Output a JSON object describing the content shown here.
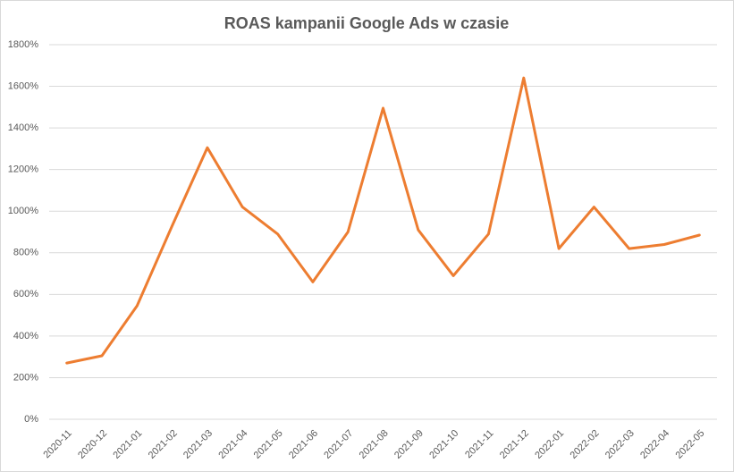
{
  "chart_data": {
    "type": "line",
    "title": "ROAS kampanii Google Ads w czasie",
    "categories": [
      "2020-11",
      "2020-12",
      "2021-01",
      "2021-02",
      "2021-03",
      "2021-04",
      "2021-05",
      "2021-06",
      "2021-07",
      "2021-08",
      "2021-09",
      "2021-10",
      "2021-11",
      "2021-12",
      "2022-01",
      "2022-02",
      "2022-03",
      "2022-04",
      "2022-05"
    ],
    "values": [
      270,
      305,
      545,
      930,
      1305,
      1020,
      890,
      660,
      900,
      1495,
      910,
      690,
      890,
      1640,
      820,
      1020,
      820,
      840,
      885
    ],
    "color": "#ed7d31",
    "ylim": [
      0,
      1800
    ],
    "yticks": [
      {
        "value": 0,
        "label": "0%"
      },
      {
        "value": 200,
        "label": "200%"
      },
      {
        "value": 400,
        "label": "400%"
      },
      {
        "value": 600,
        "label": "600%"
      },
      {
        "value": 800,
        "label": "800%"
      },
      {
        "value": 1000,
        "label": "1000%"
      },
      {
        "value": 1200,
        "label": "1200%"
      },
      {
        "value": 1400,
        "label": "1400%"
      },
      {
        "value": 1600,
        "label": "1600%"
      },
      {
        "value": 1800,
        "label": "1800%"
      }
    ],
    "grid": true
  }
}
